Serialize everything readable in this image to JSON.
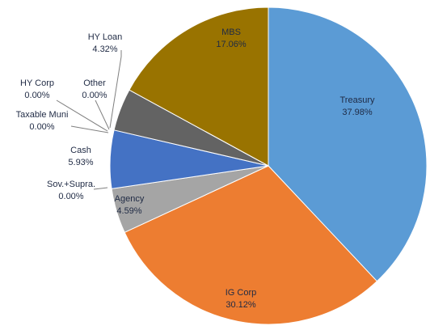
{
  "chart_data": {
    "type": "pie",
    "categories": [
      "Treasury",
      "IG Corp",
      "Agency",
      "Sov.+Supra.",
      "Cash",
      "Taxable Muni",
      "HY Corp",
      "Other",
      "HY Loan",
      "MBS"
    ],
    "values": [
      37.98,
      30.12,
      4.59,
      0.0,
      5.93,
      0.0,
      0.0,
      0.0,
      4.32,
      17.06
    ],
    "value_labels": [
      "37.98%",
      "30.12%",
      "4.59%",
      "0.00%",
      "5.93%",
      "0.00%",
      "0.00%",
      "0.00%",
      "4.32%",
      "17.06%"
    ],
    "colors": [
      "#5b9bd5",
      "#ed7d31",
      "#a5a5a5",
      "#ffc000",
      "#4472c4",
      "#70ad47",
      "#264478",
      "#9e480e",
      "#636363",
      "#997300"
    ]
  }
}
